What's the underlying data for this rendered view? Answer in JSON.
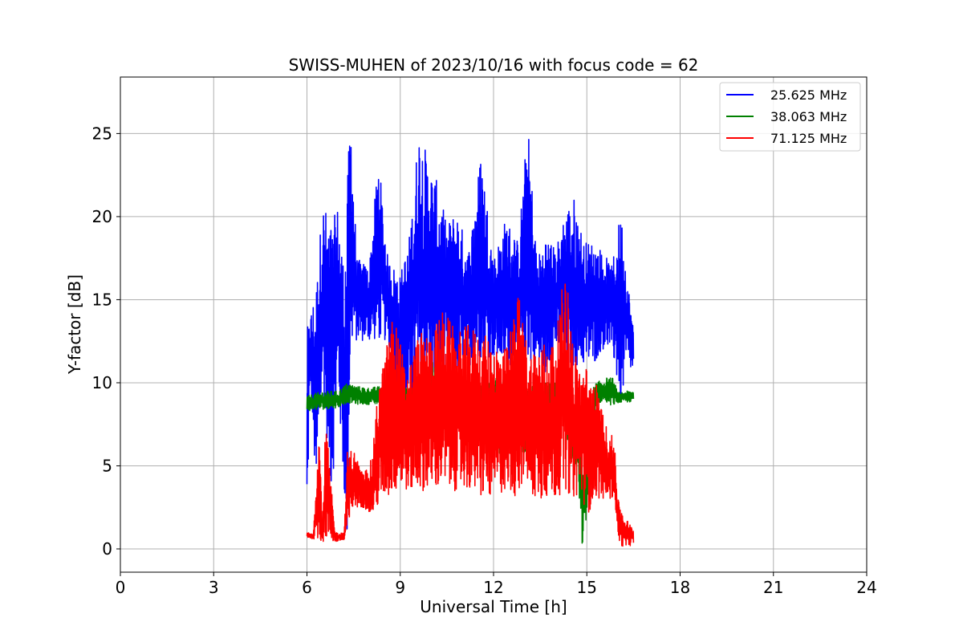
{
  "chart_data": {
    "type": "line",
    "title": "SWISS-MUHEN of 2023/10/16 with focus code = 62",
    "xlabel": "Universal Time [h]",
    "ylabel": "Y-factor [dB]",
    "xlim": [
      0,
      24
    ],
    "ylim": [
      -1.4,
      28.4
    ],
    "xticks": [
      0,
      3,
      6,
      9,
      12,
      15,
      18,
      21,
      24
    ],
    "yticks": [
      0,
      5,
      10,
      15,
      20,
      25
    ],
    "grid": true,
    "legend_position": "top-right",
    "series": [
      {
        "name": "25.625 MHz",
        "color": "#0000ff",
        "envelope": true,
        "x": [
          6.0,
          6.1,
          6.3,
          6.5,
          6.8,
          7.0,
          7.2,
          7.3,
          7.4,
          7.6,
          8.0,
          8.3,
          8.6,
          9.0,
          9.3,
          9.6,
          9.9,
          10.2,
          10.5,
          10.8,
          11.2,
          11.6,
          12.0,
          12.4,
          12.8,
          13.1,
          13.4,
          13.7,
          14.0,
          14.3,
          14.6,
          14.9,
          15.2,
          15.5,
          15.8,
          16.1,
          16.3,
          16.5
        ],
        "low": [
          0.0,
          10.5,
          2.5,
          10.0,
          3.0,
          9.5,
          3.0,
          0.0,
          12.0,
          12.5,
          12.5,
          12.5,
          12.5,
          9.0,
          8.0,
          9.5,
          10.0,
          9.0,
          10.5,
          10.5,
          11.0,
          11.5,
          11.5,
          11.0,
          11.0,
          11.0,
          11.0,
          10.5,
          12.0,
          10.5,
          11.0,
          11.0,
          11.0,
          12.0,
          12.0,
          8.5,
          11.0,
          10.5
        ],
        "high": [
          13.2,
          14.0,
          16.0,
          21.0,
          19.5,
          20.8,
          17.0,
          22.0,
          27.0,
          17.5,
          17.0,
          23.7,
          17.5,
          16.5,
          19.0,
          25.5,
          23.5,
          22.0,
          19.5,
          20.5,
          18.0,
          24.0,
          17.5,
          20.0,
          18.5,
          25.7,
          17.5,
          19.0,
          18.0,
          20.5,
          21.2,
          18.5,
          18.5,
          18.0,
          17.0,
          20.5,
          16.5,
          13.2
        ]
      },
      {
        "name": "38.063 MHz",
        "color": "#008000",
        "envelope": true,
        "x": [
          6.0,
          6.5,
          7.0,
          7.3,
          7.6,
          8.0,
          8.4,
          8.6,
          8.8,
          9.0,
          9.4,
          9.8,
          10.2,
          10.6,
          11.0,
          11.4,
          11.8,
          12.2,
          12.6,
          13.0,
          13.4,
          13.8,
          14.2,
          14.5,
          14.7,
          14.85,
          14.95,
          15.1,
          15.3,
          15.6,
          15.85,
          16.0,
          16.3,
          16.5
        ],
        "low": [
          8.3,
          8.4,
          8.5,
          8.8,
          8.7,
          8.7,
          8.7,
          8.7,
          8.6,
          8.5,
          8.5,
          9.5,
          8.5,
          6.5,
          8.0,
          6.0,
          7.5,
          5.0,
          8.0,
          5.5,
          8.0,
          6.0,
          8.5,
          5.0,
          4.5,
          0.0,
          1.2,
          3.5,
          8.8,
          8.8,
          8.6,
          8.8,
          8.8,
          8.9
        ],
        "high": [
          9.2,
          9.5,
          9.5,
          10.0,
          9.8,
          9.7,
          9.8,
          10.5,
          10.2,
          9.8,
          9.7,
          10.8,
          11.5,
          10.0,
          11.0,
          10.0,
          10.0,
          10.5,
          10.0,
          10.0,
          10.0,
          10.0,
          10.0,
          9.5,
          8.0,
          5.5,
          5.0,
          9.5,
          10.0,
          10.3,
          10.3,
          9.4,
          9.5,
          9.5
        ]
      },
      {
        "name": "71.125 MHz",
        "color": "#ff0000",
        "envelope": true,
        "x": [
          6.0,
          6.2,
          6.3,
          6.4,
          6.5,
          6.6,
          6.9,
          7.1,
          7.2,
          7.3,
          7.5,
          7.8,
          8.1,
          8.3,
          8.5,
          8.7,
          8.9,
          9.2,
          9.6,
          10.0,
          10.4,
          10.8,
          11.2,
          11.6,
          12.0,
          12.4,
          12.8,
          13.0,
          13.2,
          13.6,
          14.0,
          14.3,
          14.6,
          14.8,
          15.0,
          15.3,
          15.6,
          15.9,
          16.0,
          16.2,
          16.5
        ],
        "low": [
          0.7,
          0.6,
          0.6,
          0.4,
          0.4,
          0.5,
          0.4,
          0.5,
          0.5,
          0.6,
          2.5,
          2.5,
          2.0,
          2.5,
          3.0,
          3.0,
          3.5,
          3.5,
          3.5,
          3.5,
          3.5,
          3.5,
          3.5,
          3.0,
          3.0,
          3.5,
          3.0,
          4.5,
          3.0,
          3.0,
          3.0,
          3.5,
          3.0,
          3.5,
          2.0,
          3.0,
          3.0,
          3.0,
          0.5,
          0.0,
          0.3
        ],
        "high": [
          1.0,
          0.9,
          4.5,
          7.5,
          1.2,
          8.0,
          1.0,
          1.0,
          1.0,
          6.0,
          6.0,
          4.5,
          5.5,
          10.0,
          11.5,
          14.0,
          13.5,
          10.5,
          13.0,
          13.0,
          14.5,
          13.0,
          13.5,
          13.0,
          12.5,
          12.0,
          15.5,
          13.0,
          12.0,
          12.5,
          12.5,
          17.3,
          12.0,
          11.0,
          11.0,
          10.0,
          7.5,
          6.5,
          3.0,
          2.0,
          1.2
        ]
      }
    ]
  }
}
